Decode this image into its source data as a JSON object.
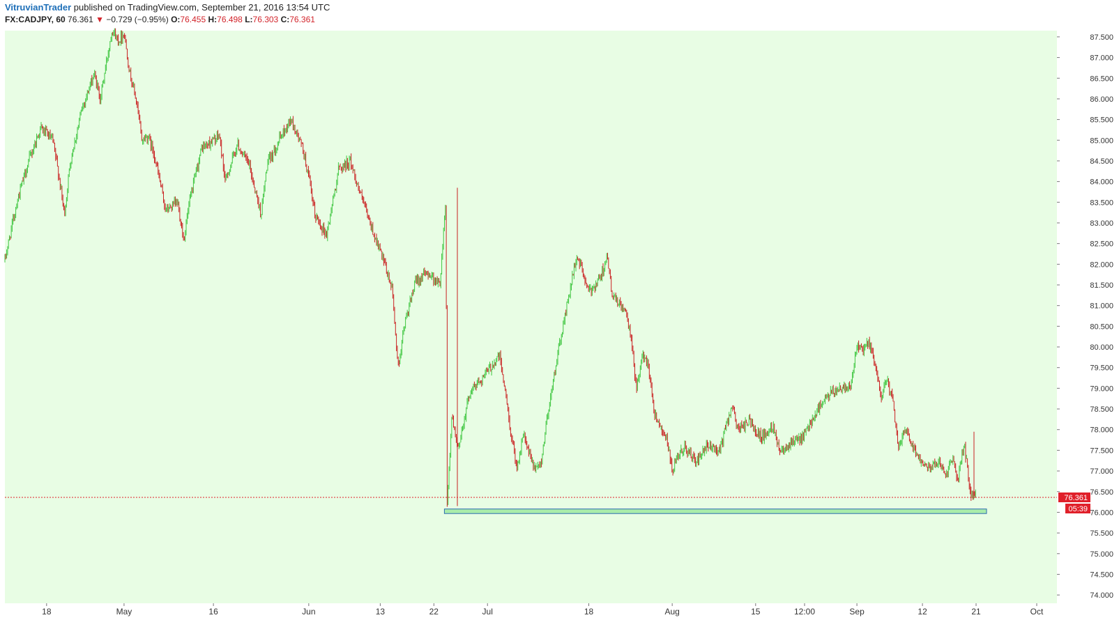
{
  "header": {
    "author": "VitruvianTrader",
    "published_text": " published on TradingView.com, September 21, 2016 13:54 UTC",
    "symbol": "FX:CADJPY, 60",
    "last": "76.361",
    "change": "−0.729 (−0.95%)",
    "o_label": "O:",
    "o_value": "76.455",
    "h_label": "H:",
    "h_value": "76.498",
    "l_label": "L:",
    "l_value": "76.303",
    "c_label": "C:",
    "c_value": "76.361",
    "down_arrow": "▼"
  },
  "colors": {
    "background": "#e8fde4",
    "up": "#3fc640",
    "down": "#c92020",
    "price_line": "#e0202a",
    "zone_fill": "#a9ecaa",
    "zone_stroke": "#2b6cb0"
  },
  "price_tag": {
    "value": "76.361",
    "countdown": "05:39"
  },
  "support_zone": {
    "from": "Jun 24",
    "to": "Sep 22",
    "low": 75.97,
    "high": 76.08
  },
  "chart_data": {
    "type": "candlestick",
    "symbol": "FX:CADJPY",
    "interval": "60",
    "ylim": [
      73.8,
      87.65
    ],
    "y_ticks": [
      "87.500",
      "87.000",
      "86.500",
      "86.000",
      "85.500",
      "85.000",
      "84.500",
      "84.000",
      "83.500",
      "83.000",
      "82.500",
      "82.000",
      "81.500",
      "81.000",
      "80.500",
      "80.000",
      "79.500",
      "79.000",
      "78.500",
      "78.000",
      "77.500",
      "77.000",
      "76.500",
      "76.000",
      "75.500",
      "75.000",
      "74.500",
      "74.000"
    ],
    "x_ticks": [
      "18",
      "May",
      "16",
      "Jun",
      "13",
      "22",
      "Jul",
      "18",
      "Aug",
      "15",
      "12:00",
      "Sep",
      "12",
      "21",
      "Oct"
    ],
    "last_price": 76.361,
    "path_points": [
      [
        "Apr 11",
        82.1
      ],
      [
        "Apr 13",
        83.5
      ],
      [
        "Apr 15",
        84.5
      ],
      [
        "Apr 17",
        85.3
      ],
      [
        "Apr 19",
        85.0
      ],
      [
        "Apr 20",
        84.2
      ],
      [
        "Apr 21",
        83.2
      ],
      [
        "Apr 22",
        84.5
      ],
      [
        "Apr 24",
        85.8
      ],
      [
        "Apr 26",
        86.6
      ],
      [
        "Apr 27",
        86.0
      ],
      [
        "Apr 29",
        87.7
      ],
      [
        "Apr 30",
        87.4
      ],
      [
        "May 1",
        87.6
      ],
      [
        "May 2",
        86.6
      ],
      [
        "May 3",
        86.0
      ],
      [
        "May 4",
        85.0
      ],
      [
        "May 5",
        85.1
      ],
      [
        "May 6",
        84.7
      ],
      [
        "May 8",
        83.3
      ],
      [
        "May 10",
        83.5
      ],
      [
        "May 11",
        82.6
      ],
      [
        "May 12",
        83.5
      ],
      [
        "May 14",
        84.8
      ],
      [
        "May 17",
        85.1
      ],
      [
        "May 18",
        84.0
      ],
      [
        "May 20",
        84.9
      ],
      [
        "May 22",
        84.4
      ],
      [
        "May 23",
        83.8
      ],
      [
        "May 24",
        83.2
      ],
      [
        "May 25",
        84.4
      ],
      [
        "May 27",
        85.0
      ],
      [
        "May 29",
        85.5
      ],
      [
        "May 31",
        84.8
      ],
      [
        "Jun 1",
        84.1
      ],
      [
        "Jun 2",
        83.2
      ],
      [
        "Jun 4",
        82.7
      ],
      [
        "Jun 6",
        84.3
      ],
      [
        "Jun 8",
        84.5
      ],
      [
        "Jun 9",
        84.0
      ],
      [
        "Jun 11",
        83.1
      ],
      [
        "Jun 13",
        82.3
      ],
      [
        "Jun 15",
        81.4
      ],
      [
        "Jun 16",
        79.5
      ],
      [
        "Jun 17",
        80.5
      ],
      [
        "Jun 19",
        81.6
      ],
      [
        "Jun 21",
        81.8
      ],
      [
        "Jun 23",
        81.5
      ],
      [
        "Jun 24",
        83.6
      ],
      [
        "Jun 24",
        76.2
      ],
      [
        "Jun 25",
        78.3
      ],
      [
        "Jun 26",
        77.5
      ],
      [
        "Jun 28",
        78.9
      ],
      [
        "Jul 1",
        79.4
      ],
      [
        "Jul 3",
        79.8
      ],
      [
        "Jul 4",
        78.9
      ],
      [
        "Jul 5",
        77.8
      ],
      [
        "Jul 6",
        77.1
      ],
      [
        "Jul 7",
        77.9
      ],
      [
        "Jul 8",
        77.4
      ],
      [
        "Jul 9",
        77.0
      ],
      [
        "Jul 10",
        77.2
      ],
      [
        "Jul 11",
        78.3
      ],
      [
        "Jul 13",
        80.0
      ],
      [
        "Jul 15",
        81.5
      ],
      [
        "Jul 16",
        82.2
      ],
      [
        "Jul 17",
        81.8
      ],
      [
        "Jul 18",
        81.3
      ],
      [
        "Jul 20",
        81.7
      ],
      [
        "Jul 21",
        82.2
      ],
      [
        "Jul 22",
        81.2
      ],
      [
        "Jul 24",
        80.9
      ],
      [
        "Jul 25",
        80.3
      ],
      [
        "Jul 26",
        79.0
      ],
      [
        "Jul 27",
        79.8
      ],
      [
        "Jul 28",
        79.6
      ],
      [
        "Jul 29",
        78.4
      ],
      [
        "Jul 31",
        77.8
      ],
      [
        "Aug 1",
        77.0
      ],
      [
        "Aug 2",
        77.3
      ],
      [
        "Aug 3",
        77.6
      ],
      [
        "Aug 5",
        77.2
      ],
      [
        "Aug 7",
        77.6
      ],
      [
        "Aug 9",
        77.5
      ],
      [
        "Aug 11",
        78.6
      ],
      [
        "Aug 12",
        78.0
      ],
      [
        "Aug 14",
        78.2
      ],
      [
        "Aug 16",
        77.8
      ],
      [
        "Aug 18",
        78.1
      ],
      [
        "Aug 19",
        77.5
      ],
      [
        "Aug 21",
        77.7
      ],
      [
        "Aug 23",
        77.8
      ],
      [
        "Aug 25",
        78.4
      ],
      [
        "Aug 27",
        78.8
      ],
      [
        "Aug 29",
        79.0
      ],
      [
        "Aug 31",
        79.1
      ],
      [
        "Sep 1",
        80.0
      ],
      [
        "Sep 2",
        79.9
      ],
      [
        "Sep 3",
        80.1
      ],
      [
        "Sep 4",
        79.6
      ],
      [
        "Sep 5",
        78.8
      ],
      [
        "Sep 6",
        79.2
      ],
      [
        "Sep 7",
        78.7
      ],
      [
        "Sep 8",
        77.5
      ],
      [
        "Sep 9",
        78.1
      ],
      [
        "Sep 11",
        77.4
      ],
      [
        "Sep 13",
        77.1
      ],
      [
        "Sep 15",
        77.2
      ],
      [
        "Sep 16",
        76.9
      ],
      [
        "Sep 17",
        77.3
      ],
      [
        "Sep 18",
        76.8
      ],
      [
        "Sep 19",
        77.7
      ],
      [
        "Sep 20",
        76.45
      ],
      [
        "Sep 21",
        76.36
      ]
    ]
  }
}
